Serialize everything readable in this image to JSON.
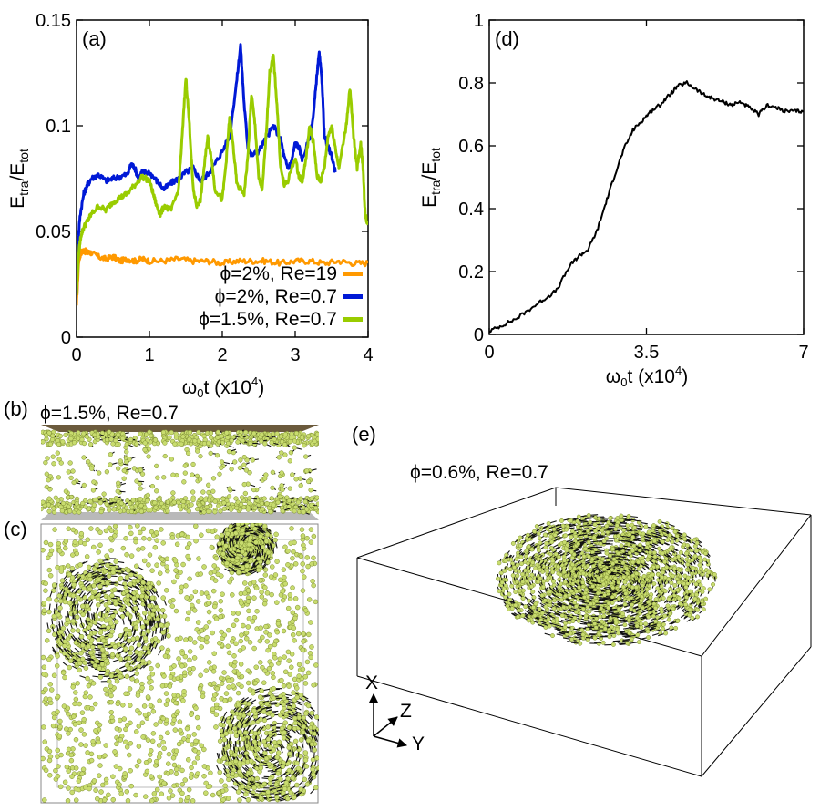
{
  "colors": {
    "orange": "#ff9900",
    "blue": "#0019d6",
    "green": "#99cc00",
    "black": "#000000",
    "particle": "#c8dc6e"
  },
  "chart_data": [
    {
      "id": "a",
      "type": "line",
      "panel_label": "(a)",
      "xlabel_main": "ω",
      "xlabel_sub": "0",
      "xlabel_rest": "t (x10",
      "xlabel_sup": "4",
      "xlabel_end": ")",
      "ylabel_main": "E",
      "ylabel_sub1": "tra",
      "ylabel_mid": "/E",
      "ylabel_sub2": "tot",
      "xlim": [
        0,
        4
      ],
      "ylim": [
        0,
        0.15
      ],
      "xticks": [
        0,
        1,
        2,
        3,
        4
      ],
      "xtick_labels": [
        "0",
        "1",
        "2",
        "3",
        "4"
      ],
      "yticks": [
        0,
        0.05,
        0.1,
        0.15
      ],
      "ytick_labels": [
        "0",
        "0.05",
        "0.1",
        "0.15"
      ],
      "series": [
        {
          "name": "ϕ=2%, Re=19",
          "color": "#ff9900",
          "points": [
            [
              0,
              0.015
            ],
            [
              0.03,
              0.036
            ],
            [
              0.06,
              0.04
            ],
            [
              0.1,
              0.041
            ],
            [
              0.15,
              0.04
            ],
            [
              0.2,
              0.04
            ],
            [
              0.3,
              0.038
            ],
            [
              0.4,
              0.037
            ],
            [
              0.5,
              0.038
            ],
            [
              0.6,
              0.036
            ],
            [
              0.7,
              0.037
            ],
            [
              0.8,
              0.036
            ],
            [
              0.9,
              0.037
            ],
            [
              1.0,
              0.036
            ],
            [
              1.2,
              0.036
            ],
            [
              1.4,
              0.037
            ],
            [
              1.6,
              0.036
            ],
            [
              1.8,
              0.036
            ],
            [
              2.0,
              0.035
            ],
            [
              2.2,
              0.036
            ],
            [
              2.4,
              0.036
            ],
            [
              2.6,
              0.036
            ],
            [
              2.8,
              0.035
            ],
            [
              3.0,
              0.036
            ],
            [
              3.2,
              0.036
            ],
            [
              3.4,
              0.035
            ],
            [
              3.6,
              0.036
            ],
            [
              3.8,
              0.035
            ],
            [
              4.0,
              0.035
            ]
          ]
        },
        {
          "name": "ϕ=2%, Re=0.7",
          "color": "#0019d6",
          "points": [
            [
              0,
              0.02
            ],
            [
              0.02,
              0.045
            ],
            [
              0.05,
              0.058
            ],
            [
              0.1,
              0.068
            ],
            [
              0.15,
              0.072
            ],
            [
              0.2,
              0.075
            ],
            [
              0.3,
              0.077
            ],
            [
              0.4,
              0.074
            ],
            [
              0.5,
              0.075
            ],
            [
              0.6,
              0.076
            ],
            [
              0.7,
              0.077
            ],
            [
              0.75,
              0.082
            ],
            [
              0.8,
              0.08
            ],
            [
              0.85,
              0.075
            ],
            [
              0.9,
              0.078
            ],
            [
              1.0,
              0.078
            ],
            [
              1.1,
              0.074
            ],
            [
              1.2,
              0.07
            ],
            [
              1.3,
              0.073
            ],
            [
              1.4,
              0.075
            ],
            [
              1.5,
              0.078
            ],
            [
              1.6,
              0.08
            ],
            [
              1.7,
              0.074
            ],
            [
              1.8,
              0.077
            ],
            [
              1.9,
              0.082
            ],
            [
              2.0,
              0.088
            ],
            [
              2.1,
              0.095
            ],
            [
              2.2,
              0.122
            ],
            [
              2.25,
              0.138
            ],
            [
              2.3,
              0.11
            ],
            [
              2.35,
              0.09
            ],
            [
              2.4,
              0.086
            ],
            [
              2.5,
              0.088
            ],
            [
              2.6,
              0.094
            ],
            [
              2.7,
              0.1
            ],
            [
              2.8,
              0.094
            ],
            [
              2.85,
              0.085
            ],
            [
              2.9,
              0.08
            ],
            [
              2.95,
              0.083
            ],
            [
              3.0,
              0.092
            ],
            [
              3.05,
              0.09
            ],
            [
              3.1,
              0.084
            ],
            [
              3.2,
              0.095
            ],
            [
              3.25,
              0.105
            ],
            [
              3.3,
              0.125
            ],
            [
              3.33,
              0.134
            ],
            [
              3.37,
              0.12
            ],
            [
              3.4,
              0.095
            ],
            [
              3.45,
              0.09
            ],
            [
              3.5,
              0.086
            ],
            [
              3.55,
              0.078
            ]
          ]
        },
        {
          "name": "ϕ=1.5%, Re=0.7",
          "color": "#99cc00",
          "points": [
            [
              0,
              0.02
            ],
            [
              0.03,
              0.04
            ],
            [
              0.06,
              0.048
            ],
            [
              0.1,
              0.052
            ],
            [
              0.15,
              0.055
            ],
            [
              0.2,
              0.058
            ],
            [
              0.3,
              0.062
            ],
            [
              0.4,
              0.06
            ],
            [
              0.5,
              0.064
            ],
            [
              0.6,
              0.066
            ],
            [
              0.7,
              0.068
            ],
            [
              0.8,
              0.072
            ],
            [
              0.9,
              0.076
            ],
            [
              1.0,
              0.074
            ],
            [
              1.05,
              0.068
            ],
            [
              1.1,
              0.062
            ],
            [
              1.15,
              0.058
            ],
            [
              1.2,
              0.062
            ],
            [
              1.3,
              0.06
            ],
            [
              1.4,
              0.07
            ],
            [
              1.45,
              0.095
            ],
            [
              1.5,
              0.123
            ],
            [
              1.55,
              0.1
            ],
            [
              1.6,
              0.07
            ],
            [
              1.65,
              0.062
            ],
            [
              1.7,
              0.065
            ],
            [
              1.75,
              0.08
            ],
            [
              1.8,
              0.095
            ],
            [
              1.85,
              0.085
            ],
            [
              1.9,
              0.07
            ],
            [
              2.0,
              0.065
            ],
            [
              2.05,
              0.082
            ],
            [
              2.1,
              0.104
            ],
            [
              2.15,
              0.09
            ],
            [
              2.2,
              0.072
            ],
            [
              2.3,
              0.068
            ],
            [
              2.35,
              0.085
            ],
            [
              2.4,
              0.115
            ],
            [
              2.45,
              0.1
            ],
            [
              2.5,
              0.075
            ],
            [
              2.55,
              0.07
            ],
            [
              2.6,
              0.095
            ],
            [
              2.65,
              0.125
            ],
            [
              2.7,
              0.133
            ],
            [
              2.75,
              0.11
            ],
            [
              2.8,
              0.08
            ],
            [
              2.85,
              0.072
            ],
            [
              2.9,
              0.074
            ],
            [
              3.0,
              0.085
            ],
            [
              3.05,
              0.076
            ],
            [
              3.1,
              0.074
            ],
            [
              3.15,
              0.085
            ],
            [
              3.2,
              0.1
            ],
            [
              3.25,
              0.092
            ],
            [
              3.3,
              0.076
            ],
            [
              3.35,
              0.074
            ],
            [
              3.4,
              0.08
            ],
            [
              3.45,
              0.095
            ],
            [
              3.5,
              0.1
            ],
            [
              3.55,
              0.09
            ],
            [
              3.6,
              0.08
            ],
            [
              3.7,
              0.1
            ],
            [
              3.75,
              0.118
            ],
            [
              3.8,
              0.095
            ],
            [
              3.85,
              0.08
            ],
            [
              3.9,
              0.092
            ],
            [
              3.93,
              0.08
            ],
            [
              3.96,
              0.058
            ],
            [
              4.0,
              0.053
            ]
          ]
        }
      ]
    },
    {
      "id": "d",
      "type": "line",
      "panel_label": "(d)",
      "xlabel_main": "ω",
      "xlabel_sub": "0",
      "xlabel_rest": "t (x10",
      "xlabel_sup": "4",
      "xlabel_end": ")",
      "ylabel_main": "E",
      "ylabel_sub1": "tra",
      "ylabel_mid": "/E",
      "ylabel_sub2": "tot",
      "xlim": [
        0,
        7
      ],
      "ylim": [
        0,
        1
      ],
      "xticks": [
        0,
        3.5,
        7
      ],
      "xtick_labels": [
        "0",
        "3.5",
        "7"
      ],
      "yticks": [
        0,
        0.2,
        0.4,
        0.6,
        0.8,
        1
      ],
      "ytick_labels": [
        "0",
        "0.2",
        "0.4",
        "0.6",
        "0.8",
        "1"
      ],
      "series": [
        {
          "name": "ϕ=0.6%, Re=0.7",
          "color": "#000000",
          "points": [
            [
              0,
              0.01
            ],
            [
              0.3,
              0.03
            ],
            [
              0.6,
              0.05
            ],
            [
              0.9,
              0.08
            ],
            [
              1.2,
              0.11
            ],
            [
              1.5,
              0.14
            ],
            [
              1.8,
              0.22
            ],
            [
              2.0,
              0.25
            ],
            [
              2.2,
              0.27
            ],
            [
              2.4,
              0.33
            ],
            [
              2.6,
              0.42
            ],
            [
              2.8,
              0.51
            ],
            [
              3.0,
              0.59
            ],
            [
              3.2,
              0.65
            ],
            [
              3.4,
              0.68
            ],
            [
              3.6,
              0.71
            ],
            [
              3.8,
              0.73
            ],
            [
              4.0,
              0.76
            ],
            [
              4.2,
              0.79
            ],
            [
              4.4,
              0.8
            ],
            [
              4.6,
              0.78
            ],
            [
              4.8,
              0.76
            ],
            [
              5.0,
              0.75
            ],
            [
              5.2,
              0.74
            ],
            [
              5.4,
              0.73
            ],
            [
              5.6,
              0.74
            ],
            [
              5.8,
              0.72
            ],
            [
              6.0,
              0.7
            ],
            [
              6.2,
              0.73
            ],
            [
              6.4,
              0.72
            ],
            [
              6.6,
              0.71
            ],
            [
              6.8,
              0.71
            ],
            [
              7.0,
              0.71
            ]
          ]
        }
      ]
    }
  ],
  "panel_b": {
    "label": "(b)",
    "caption": "ϕ=1.5%, Re=0.7"
  },
  "panel_c": {
    "label": "(c)"
  },
  "panel_e": {
    "label": "(e)",
    "caption": "ϕ=0.6%, Re=0.7"
  },
  "axes3d": {
    "x": "X",
    "y": "Y",
    "z": "Z"
  }
}
